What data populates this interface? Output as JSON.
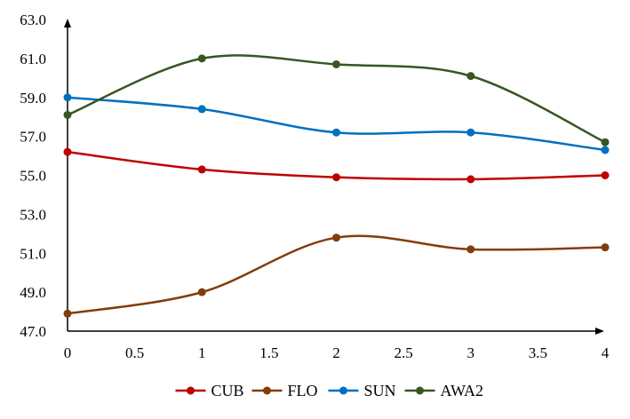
{
  "chart_data": {
    "type": "line",
    "title": "",
    "xlabel": "",
    "ylabel": "",
    "x": [
      0,
      1,
      2,
      3,
      4
    ],
    "xlim": [
      0,
      4
    ],
    "ylim": [
      47,
      63
    ],
    "x_ticks": [
      "0",
      "0.5",
      "1",
      "1.5",
      "2",
      "2.5",
      "3",
      "3.5",
      "4"
    ],
    "y_ticks": [
      "47.0",
      "49.0",
      "51.0",
      "53.0",
      "55.0",
      "57.0",
      "59.0",
      "61.0",
      "63.0"
    ],
    "grid": false,
    "smoothed": true,
    "legend_position": "bottom",
    "series": [
      {
        "name": "CUB",
        "color": "#c00000",
        "values": [
          56.2,
          55.3,
          54.9,
          54.8,
          55.0
        ]
      },
      {
        "name": "FLO",
        "color": "#843c0c",
        "values": [
          47.9,
          49.0,
          51.8,
          51.2,
          51.3
        ]
      },
      {
        "name": "SUN",
        "color": "#0070c0",
        "values": [
          59.0,
          58.4,
          57.2,
          57.2,
          56.3
        ]
      },
      {
        "name": "AWA2",
        "color": "#375623",
        "values": [
          58.1,
          61.0,
          60.7,
          60.1,
          56.7
        ]
      }
    ]
  }
}
